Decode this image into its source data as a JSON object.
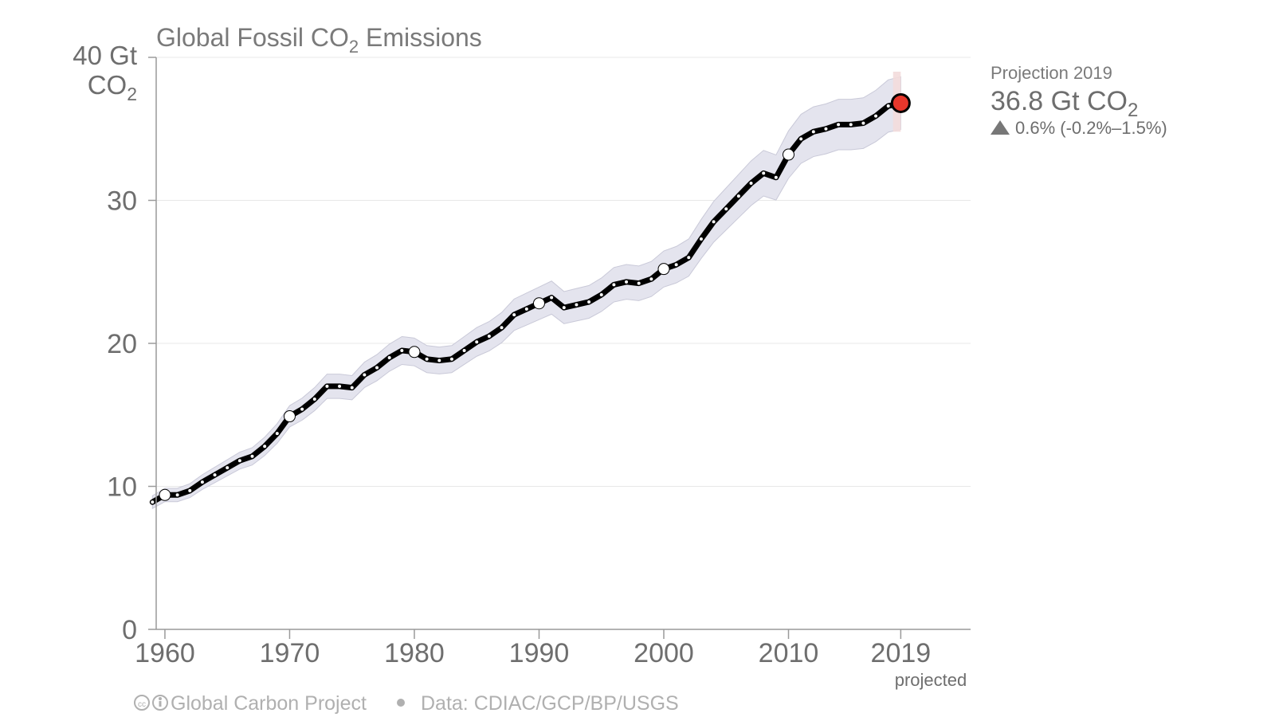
{
  "chart_data": {
    "type": "line",
    "title": {
      "main": "Global Fossil CO",
      "sub": "2",
      "rest": " Emissions"
    },
    "ylabel": {
      "line1": "40 Gt",
      "line2_main": "CO",
      "line2_sub": "2"
    },
    "ylim": [
      0,
      40
    ],
    "xlim": [
      1959,
      2019
    ],
    "yticks": [
      "0",
      "10",
      "20",
      "30"
    ],
    "xticks": [
      {
        "value": 1960,
        "label": "1960"
      },
      {
        "value": 1970,
        "label": "1970"
      },
      {
        "value": 1980,
        "label": "1980"
      },
      {
        "value": 1990,
        "label": "1990"
      },
      {
        "value": 2000,
        "label": "2000"
      },
      {
        "value": 2010,
        "label": "2010"
      },
      {
        "value": 2019,
        "label": "2019"
      }
    ],
    "projected_label": "projected",
    "grid": true,
    "series": [
      {
        "x": [
          1959,
          1960,
          1961,
          1962,
          1963,
          1964,
          1965,
          1966,
          1967,
          1968,
          1969,
          1970,
          1971,
          1972,
          1973,
          1974,
          1975,
          1976,
          1977,
          1978,
          1979,
          1980,
          1981,
          1982,
          1983,
          1984,
          1985,
          1986,
          1987,
          1988,
          1989,
          1990,
          1991,
          1992,
          1993,
          1994,
          1995,
          1996,
          1997,
          1998,
          1999,
          2000,
          2001,
          2002,
          2003,
          2004,
          2005,
          2006,
          2007,
          2008,
          2009,
          2010,
          2011,
          2012,
          2013,
          2014,
          2015,
          2016,
          2017,
          2018,
          2019
        ],
        "y": [
          8.9,
          9.4,
          9.4,
          9.7,
          10.3,
          10.8,
          11.3,
          11.8,
          12.1,
          12.8,
          13.7,
          14.9,
          15.4,
          16.1,
          17.0,
          17.0,
          16.9,
          17.8,
          18.3,
          19.0,
          19.5,
          19.4,
          18.9,
          18.8,
          18.9,
          19.5,
          20.1,
          20.5,
          21.1,
          22.0,
          22.4,
          22.8,
          23.2,
          22.5,
          22.7,
          22.9,
          23.4,
          24.1,
          24.3,
          24.2,
          24.5,
          25.2,
          25.5,
          26.0,
          27.3,
          28.5,
          29.4,
          30.3,
          31.2,
          31.9,
          31.6,
          33.2,
          34.3,
          34.8,
          35.0,
          35.3,
          35.3,
          35.4,
          35.9,
          36.6,
          36.8
        ],
        "uncertainty_pct": 5
      }
    ],
    "projection": {
      "year": 2019,
      "value": 36.8,
      "low": 34.8,
      "high": 39.0,
      "heading": "Projection 2019",
      "value_main": "36.8 Gt CO",
      "value_sub": "2",
      "change": "0.6% (-0.2%–1.5%)"
    }
  },
  "footer": {
    "org": "Global Carbon Project",
    "source": "Data: CDIAC/GCP/BP/USGS"
  },
  "colors": {
    "line": "#000000",
    "band": "#e4e4ee",
    "band_edge": "#c9c9d8",
    "projection_band": "#f3dcdc",
    "projection_marker": "#e8372c",
    "grid": "#e8e8e8",
    "axis": "#9a9a9a"
  }
}
